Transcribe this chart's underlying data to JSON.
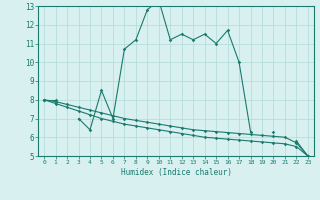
{
  "xlabel": "Humidex (Indice chaleur)",
  "x_values": [
    0,
    1,
    2,
    3,
    4,
    5,
    6,
    7,
    8,
    9,
    10,
    11,
    12,
    13,
    14,
    15,
    16,
    17,
    18,
    19,
    20,
    21,
    22,
    23
  ],
  "line1_y": [
    8.0,
    8.0,
    null,
    7.0,
    6.4,
    8.5,
    7.0,
    10.7,
    11.2,
    12.8,
    13.3,
    11.2,
    11.5,
    11.2,
    11.5,
    11.0,
    11.7,
    10.0,
    6.3,
    null,
    6.3,
    null,
    5.8,
    5.0
  ],
  "line2_y": [
    8.0,
    7.9,
    7.75,
    7.6,
    7.45,
    7.3,
    7.15,
    7.0,
    6.9,
    6.8,
    6.7,
    6.6,
    6.5,
    6.4,
    6.35,
    6.3,
    6.25,
    6.2,
    6.15,
    6.1,
    6.05,
    6.0,
    5.7,
    5.0
  ],
  "line3_y": [
    8.0,
    7.8,
    7.6,
    7.4,
    7.2,
    7.0,
    6.85,
    6.7,
    6.6,
    6.5,
    6.4,
    6.3,
    6.2,
    6.1,
    6.0,
    5.95,
    5.9,
    5.85,
    5.8,
    5.75,
    5.7,
    5.65,
    5.5,
    5.0
  ],
  "ylim": [
    5,
    13
  ],
  "xlim": [
    -0.5,
    23.5
  ],
  "yticks": [
    5,
    6,
    7,
    8,
    9,
    10,
    11,
    12,
    13
  ],
  "xticks": [
    0,
    1,
    2,
    3,
    4,
    5,
    6,
    7,
    8,
    9,
    10,
    11,
    12,
    13,
    14,
    15,
    16,
    17,
    18,
    19,
    20,
    21,
    22,
    23
  ],
  "line_color": "#1a7a6e",
  "bg_color": "#d8f0f0",
  "grid_color": "#b0d8d8",
  "marker": "D",
  "marker_size": 1.8,
  "line_width": 0.8
}
